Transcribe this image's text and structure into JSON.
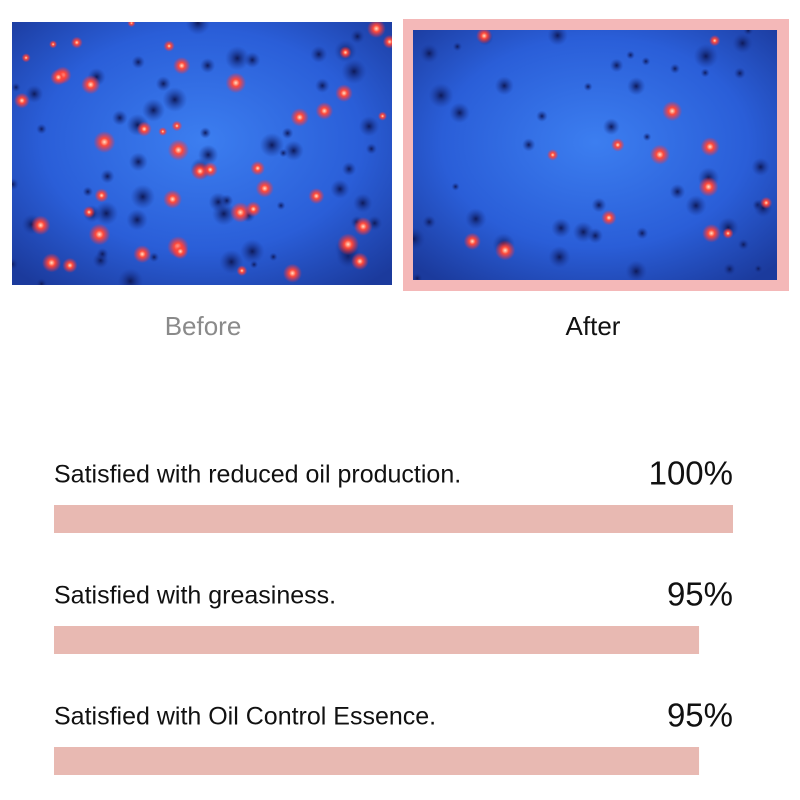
{
  "photos": {
    "before_label": "Before",
    "after_label": "After"
  },
  "chart_data": {
    "type": "bar",
    "orientation": "horizontal",
    "categories": [
      "Satisfied with reduced oil production.",
      "Satisfied with greasiness.",
      "Satisfied with Oil Control Essence."
    ],
    "values": [
      100,
      95,
      95
    ],
    "value_labels": [
      "100%",
      "95%",
      "95%"
    ],
    "color": "#e8b9b2",
    "xlim": [
      0,
      100
    ]
  }
}
